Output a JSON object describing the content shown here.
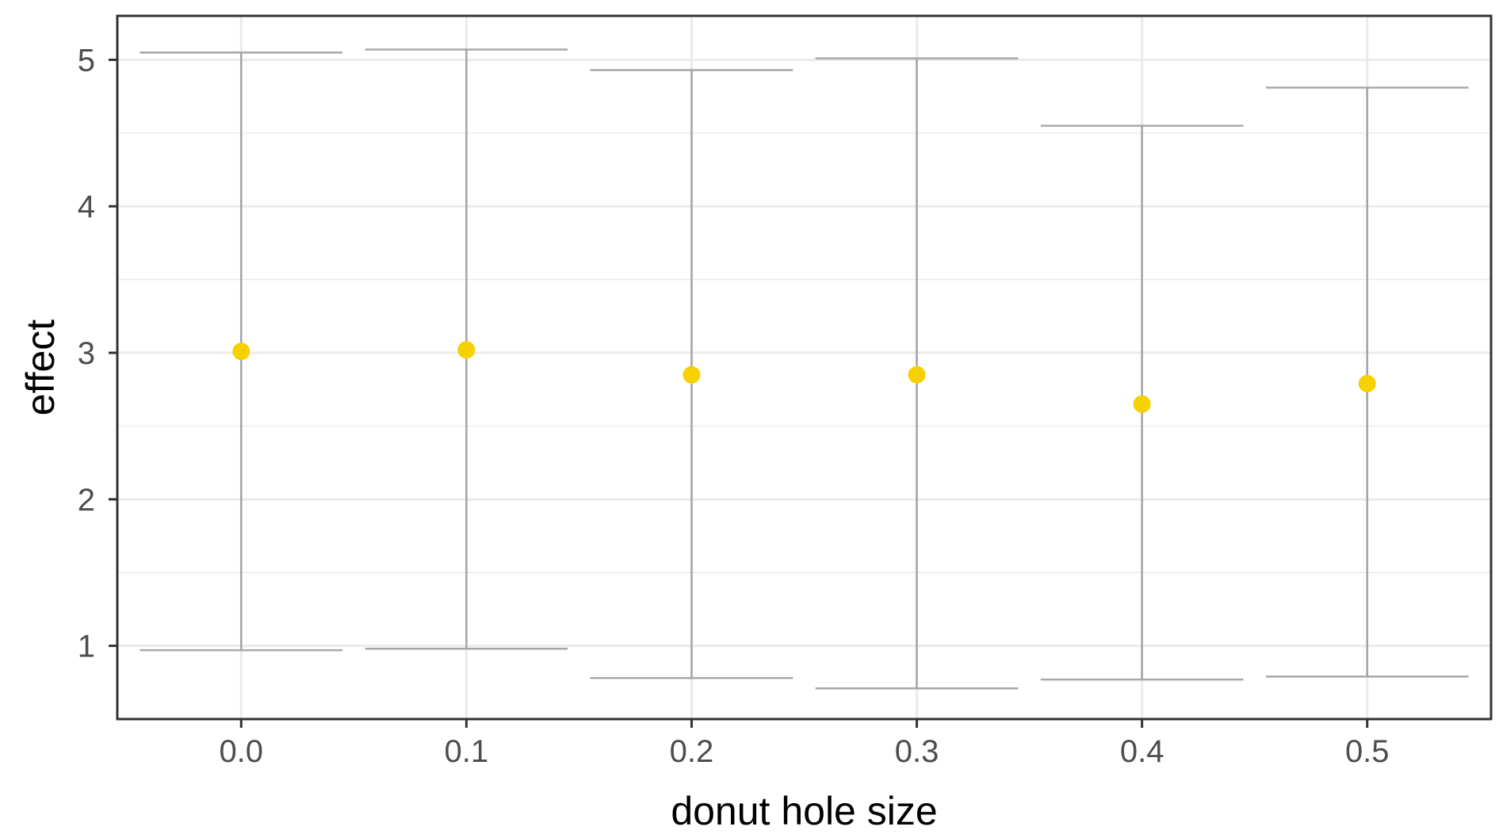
{
  "chart_data": {
    "type": "scatter",
    "title": "",
    "xlabel": "donut hole size",
    "ylabel": "effect",
    "x": [
      0.0,
      0.1,
      0.2,
      0.3,
      0.4,
      0.5
    ],
    "x_tick_labels": [
      "0.0",
      "0.1",
      "0.2",
      "0.3",
      "0.4",
      "0.5"
    ],
    "y_ticks": [
      1,
      2,
      3,
      4,
      5
    ],
    "y_tick_labels": [
      "1",
      "2",
      "3",
      "4",
      "5"
    ],
    "series": [
      {
        "values": [
          3.01,
          3.02,
          2.85,
          2.85,
          2.65,
          2.79
        ],
        "lower": [
          0.97,
          0.98,
          0.78,
          0.71,
          0.77,
          0.79
        ],
        "upper": [
          5.05,
          5.07,
          4.93,
          5.01,
          4.55,
          4.81
        ]
      }
    ],
    "xlim": [
      -0.055,
      0.555
    ],
    "ylim": [
      0.5,
      5.3
    ],
    "grid": true,
    "legend": "none",
    "colors": {
      "point": "#f7d000",
      "errorbar": "#999999",
      "grid": "#ebebeb",
      "panel_border": "#333333"
    }
  }
}
